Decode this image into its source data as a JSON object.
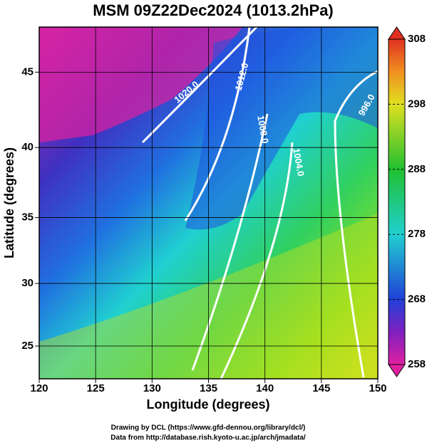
{
  "map": {
    "title": "MSM 09Z22Dec2024 (1013.2hPa)",
    "x_label": "Longitude (degrees)",
    "y_label": "Latitude  (degrees)",
    "xlim": [
      120,
      150
    ],
    "ylim": [
      22.3,
      47.8
    ],
    "xticks": [
      120,
      125,
      130,
      135,
      140,
      145,
      150
    ],
    "yticks": [
      25,
      30,
      35,
      40,
      45
    ],
    "grid": true,
    "colorbar": {
      "clim": [
        258,
        308
      ],
      "ticks": [
        258,
        268,
        278,
        288,
        298,
        308
      ]
    },
    "contour_labels": [
      "1020.0",
      "1012.0",
      "1008.0",
      "1004.0",
      "996.0"
    ],
    "credits": [
      "Drawing by DCL (https://www.gfd-dennou.org/library/dcl/)",
      "Data from http://database.rish.kyoto-u.ac.jp/arch/jmadata/"
    ]
  }
}
